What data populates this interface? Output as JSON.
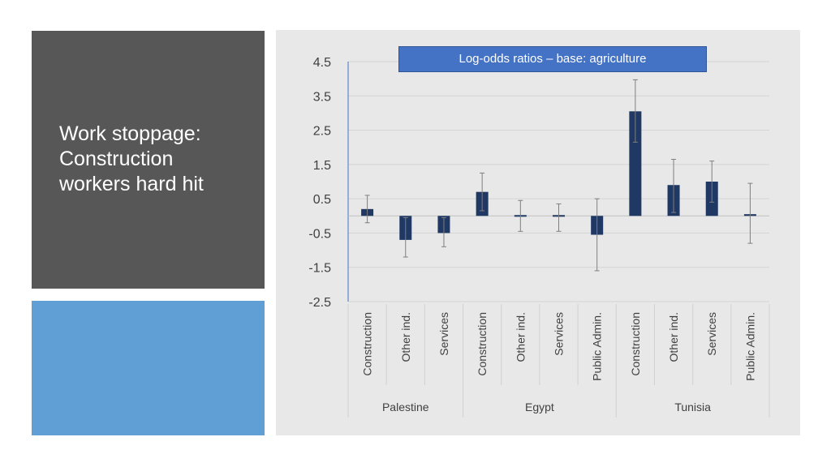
{
  "slide": {
    "title_lines": [
      "Work stoppage:",
      "Construction",
      "workers hard hit"
    ]
  },
  "colors": {
    "dark_panel": "#575757",
    "accent_panel": "#609ed6",
    "chart_background": "#e8e8e8",
    "bar": "#1f3864",
    "title_box": "#4472c4"
  },
  "chart_data": {
    "type": "bar",
    "title": "Log-odds ratios – base: agriculture",
    "ylim": [
      -2.5,
      4.5
    ],
    "yticks": [
      "4.5",
      "3.5",
      "2.5",
      "1.5",
      "0.5",
      "-0.5",
      "-1.5",
      "-2.5"
    ],
    "ytick_values": [
      4.5,
      3.5,
      2.5,
      1.5,
      0.5,
      -0.5,
      -1.5,
      -2.5
    ],
    "grid": true,
    "groups": [
      {
        "name": "Palestine",
        "categories": [
          "Construction",
          "Other ind.",
          "Services"
        ],
        "values": [
          0.2,
          -0.7,
          -0.5
        ],
        "error_low": [
          -0.2,
          -1.2,
          -0.9
        ],
        "error_high": [
          0.6,
          -0.05,
          -0.05
        ]
      },
      {
        "name": "Egypt",
        "categories": [
          "Construction",
          "Other ind.",
          "Services",
          "Public Admin."
        ],
        "values": [
          0.7,
          0.0,
          0.0,
          -0.55
        ],
        "error_low": [
          0.15,
          -0.45,
          -0.45,
          -1.6
        ],
        "error_high": [
          1.25,
          0.45,
          0.35,
          0.5
        ]
      },
      {
        "name": "Tunisia",
        "categories": [
          "Construction",
          "Other ind.",
          "Services",
          "Public Admin."
        ],
        "values": [
          3.05,
          0.9,
          1.0,
          0.05
        ],
        "error_low": [
          2.15,
          0.1,
          0.4,
          -0.8
        ],
        "error_high": [
          3.97,
          1.65,
          1.6,
          0.95
        ]
      }
    ]
  }
}
